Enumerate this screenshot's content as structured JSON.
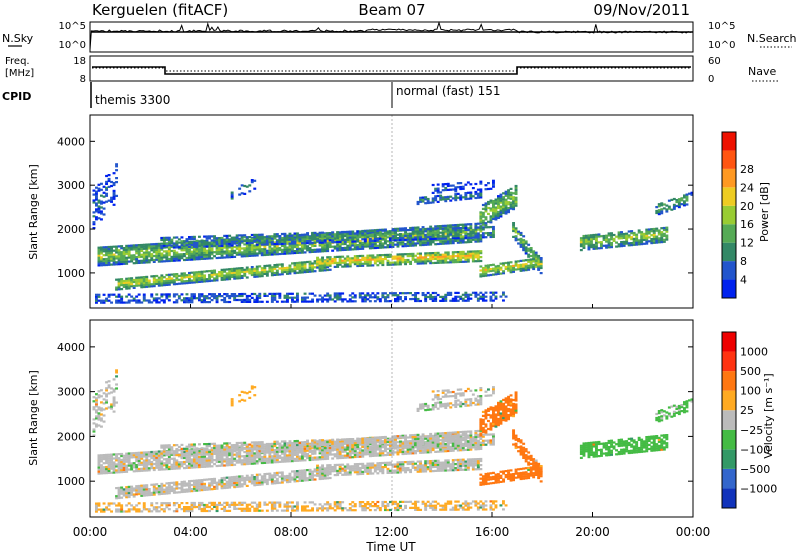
{
  "header": {
    "station": "Kerguelen (fitACF)",
    "beam": "Beam 07",
    "date": "09/Nov/2011"
  },
  "control_panels": {
    "nsky": {
      "label": "N.Sky",
      "ticks": [
        "10^5",
        "10^0"
      ],
      "right_label": "N.Search",
      "right_ticks": [
        "10^5",
        "10^0"
      ]
    },
    "freq": {
      "label_line1": "Freq.",
      "label_line2": "[MHz]",
      "ticks": [
        "18",
        "8"
      ],
      "right_label": "Nave",
      "right_ticks": [
        "60",
        "0"
      ]
    },
    "cpid": {
      "label": "CPID",
      "modes": [
        "themis 3300",
        "normal (fast) 151"
      ]
    }
  },
  "chart_data": [
    {
      "type": "heatmap",
      "name": "power",
      "ylabel": "Slant Range [km]",
      "xlim": [
        "00:00",
        "24:00"
      ],
      "ylim": [
        200,
        4600
      ],
      "yticks": [
        "1000",
        "2000",
        "3000",
        "4000"
      ],
      "colorbar": {
        "label": "Power [dB]",
        "ticks": [
          "4",
          "8",
          "12",
          "16",
          "20",
          "24",
          "28"
        ],
        "colors": [
          "#0022ee",
          "#2255cc",
          "#338866",
          "#55aa55",
          "#99cc33",
          "#eecc22",
          "#ff9922",
          "#ff5511",
          "#ee1100"
        ]
      }
    },
    {
      "type": "heatmap",
      "name": "velocity",
      "ylabel": "Slant Range [km]",
      "xlabel": "Time UT",
      "xlim": [
        "00:00",
        "24:00"
      ],
      "ylim": [
        200,
        4600
      ],
      "yticks": [
        "1000",
        "2000",
        "3000",
        "4000"
      ],
      "xticks": [
        "00:00",
        "04:00",
        "08:00",
        "12:00",
        "16:00",
        "20:00",
        "00:00"
      ],
      "colorbar": {
        "label": "Velocity [m s⁻¹]",
        "ticks": [
          "1000",
          "500",
          "100",
          "25",
          "−25",
          "−100",
          "−500",
          "−1000"
        ],
        "colors": [
          "#1133bb",
          "#3366cc",
          "#339966",
          "#44bb44",
          "#bbbbbb",
          "#ffaa22",
          "#ff7711",
          "#ff3311",
          "#ee0000"
        ]
      }
    }
  ]
}
